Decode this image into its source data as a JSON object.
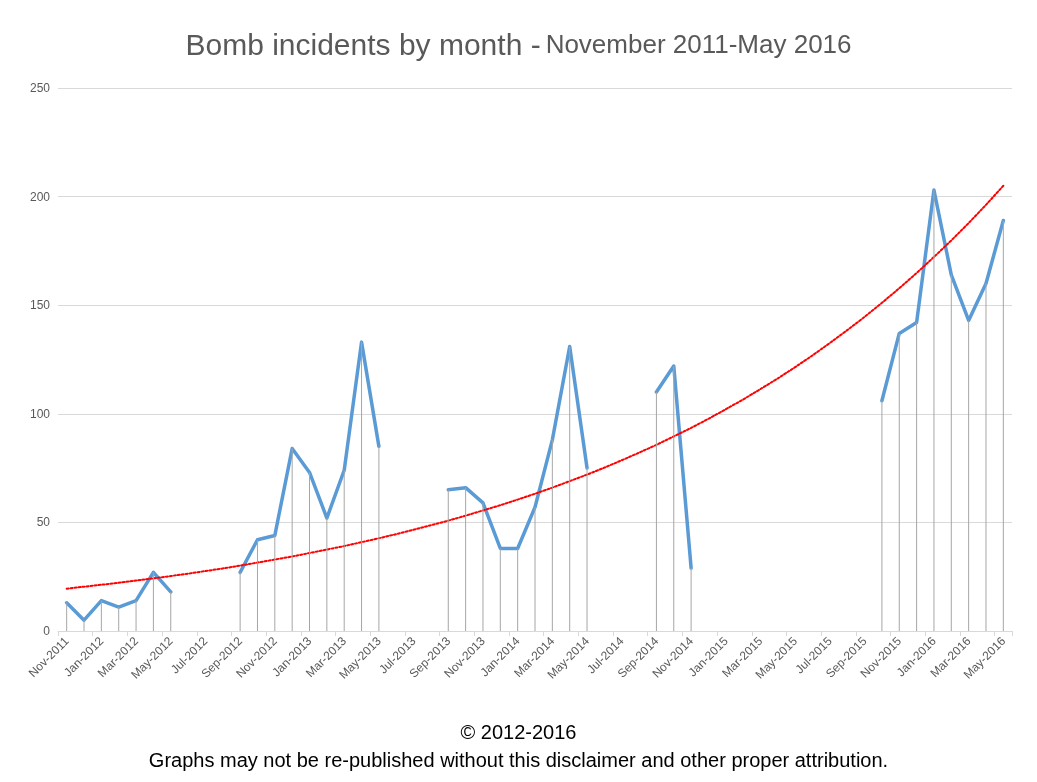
{
  "chart_data": {
    "type": "line",
    "title": "Bomb incidents by month -",
    "subtitle": "November 2011-May 2016",
    "categories": [
      "Nov-2011",
      null,
      "Jan-2012",
      null,
      "Mar-2012",
      null,
      "May-2012",
      null,
      "Jul-2012",
      null,
      "Sep-2012",
      null,
      "Nov-2012",
      null,
      "Jan-2013",
      null,
      "Mar-2013",
      null,
      "May-2013",
      null,
      "Jul-2013",
      null,
      "Sep-2013",
      null,
      "Nov-2013",
      null,
      "Jan-2014",
      null,
      "Mar-2014",
      null,
      "May-2014",
      null,
      "Jul-2014",
      null,
      "Sep-2014",
      null,
      "Nov-2014",
      null,
      "Jan-2015",
      null,
      "Mar-2015",
      null,
      "May-2015",
      null,
      "Jul-2015",
      null,
      "Sep-2015",
      null,
      "Nov-2015",
      null,
      "Jan-2016",
      null,
      "Mar-2016",
      null,
      "May-2016"
    ],
    "series": [
      {
        "color": "#5b9bd5",
        "values": [
          13,
          5,
          14,
          11,
          14,
          27,
          18,
          null,
          null,
          null,
          27,
          42,
          44,
          84,
          73,
          52,
          74,
          133,
          85,
          null,
          null,
          null,
          65,
          66,
          59,
          38,
          38,
          57,
          88,
          131,
          75,
          null,
          null,
          null,
          110,
          122,
          29,
          null,
          null,
          null,
          null,
          null,
          null,
          null,
          null,
          null,
          null,
          106,
          137,
          142,
          203,
          164,
          143,
          160,
          189
        ]
      },
      {
        "type": "bar",
        "color": "#a6a6a6",
        "values": [
          13,
          5,
          14,
          11,
          14,
          27,
          18,
          null,
          null,
          null,
          27,
          42,
          44,
          84,
          73,
          52,
          74,
          133,
          85,
          null,
          null,
          null,
          65,
          66,
          59,
          38,
          38,
          57,
          88,
          131,
          75,
          null,
          null,
          null,
          110,
          122,
          29,
          null,
          null,
          null,
          null,
          null,
          null,
          null,
          null,
          null,
          null,
          106,
          137,
          142,
          203,
          164,
          143,
          160,
          189
        ]
      },
      {
        "type": "line",
        "color": "#ff0000",
        "line_style": "dotted",
        "values": [
          19.5,
          20.4,
          21.3,
          22.2,
          23.2,
          24.2,
          25.3,
          26.4,
          27.6,
          28.8,
          30.1,
          31.5,
          32.9,
          34.3,
          35.9,
          37.5,
          39.1,
          40.9,
          42.7,
          44.6,
          46.6,
          48.7,
          50.8,
          53.1,
          55.5,
          57.9,
          60.5,
          63.2,
          66.0,
          69.0,
          72.0,
          75.2,
          78.6,
          82.1,
          85.7,
          89.6,
          93.5,
          97.7,
          102.1,
          106.6,
          111.4,
          116.3,
          121.5,
          126.9,
          132.6,
          138.5,
          144.6,
          151.1,
          157.8,
          164.8,
          172.2,
          179.8,
          187.8,
          196.2,
          205.0
        ]
      }
    ],
    "ylim": [
      0,
      250
    ],
    "yticks": [
      0,
      50,
      100,
      150,
      200,
      250
    ],
    "grid": "y",
    "marker": "none",
    "line_style": "solid",
    "annotations": [
      "© 2012-2016",
      "Graphs may not be re-published without this disclaimer and other proper attribution."
    ]
  }
}
